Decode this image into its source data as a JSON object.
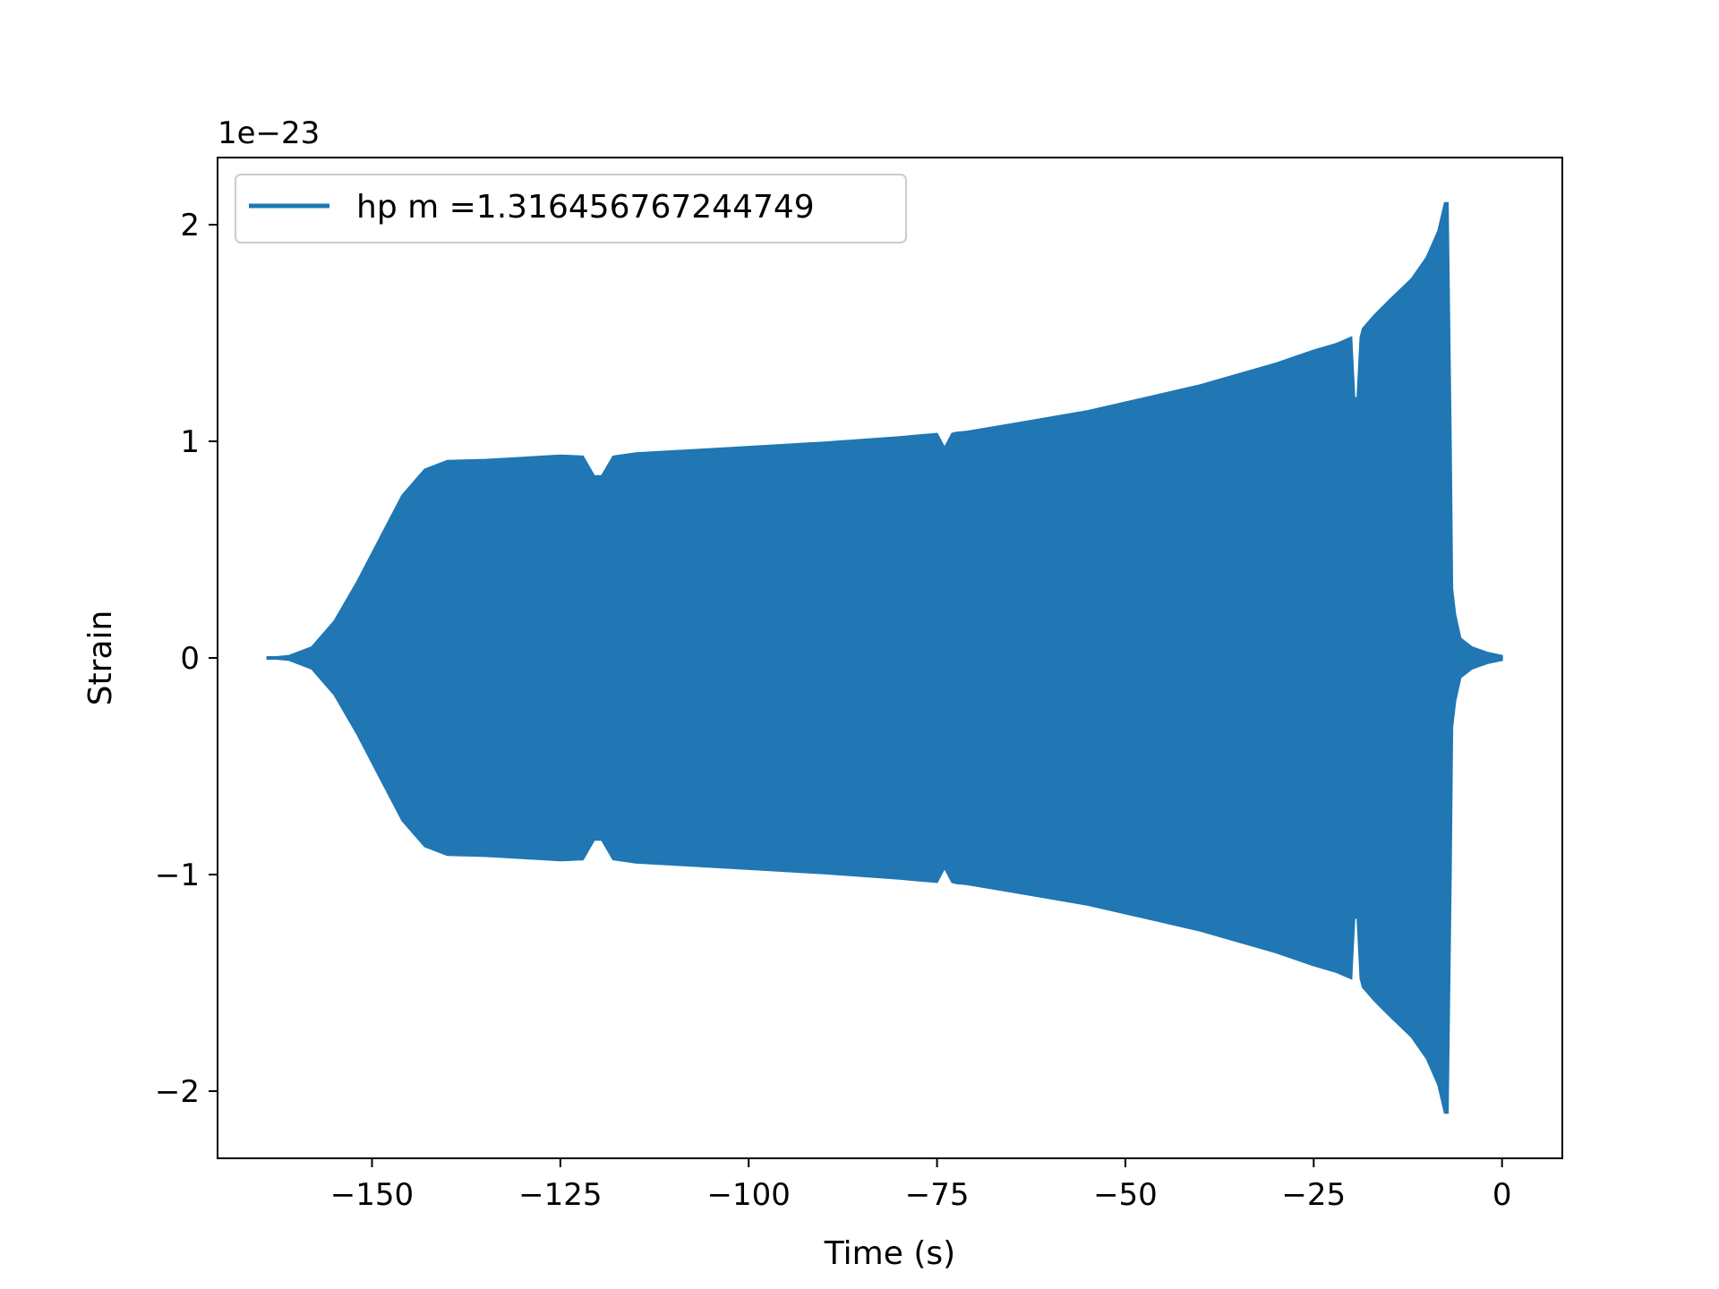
{
  "chart_data": {
    "type": "line",
    "title": "",
    "xlabel": "Time (s)",
    "ylabel": "Strain",
    "y_scale_label": "1e−23",
    "xlim": [
      -170.5,
      8
    ],
    "ylim": [
      -2.31,
      2.31
    ],
    "x_ticks": [
      {
        "value": -150,
        "label": "−150"
      },
      {
        "value": -125,
        "label": "−125"
      },
      {
        "value": -100,
        "label": "−100"
      },
      {
        "value": -75,
        "label": "−75"
      },
      {
        "value": -50,
        "label": "−50"
      },
      {
        "value": -25,
        "label": "−25"
      },
      {
        "value": 0,
        "label": "0"
      }
    ],
    "y_ticks": [
      {
        "value": 2,
        "label": "2"
      },
      {
        "value": 1,
        "label": "1"
      },
      {
        "value": 0,
        "label": "0"
      },
      {
        "value": -1,
        "label": "−1"
      },
      {
        "value": -2,
        "label": "−2"
      }
    ],
    "legend": {
      "placement": "top-left"
    },
    "series": [
      {
        "name": "hp m =1.316456767244749",
        "color": "#1f77b4",
        "envelope": {
          "x": [
            -164,
            -161,
            -158,
            -155,
            -152,
            -149,
            -146,
            -143,
            -140,
            -135,
            -130,
            -125,
            -122,
            -120.5,
            -119.5,
            -118,
            -115,
            -110,
            -100,
            -90,
            -80,
            -75,
            -74,
            -73,
            -72.5,
            -71,
            -65,
            -60,
            -55,
            -50,
            -45,
            -40,
            -35,
            -30,
            -25,
            -22,
            -20,
            -19.6,
            -19.2,
            -18.8,
            -18.5,
            -17,
            -15,
            -12,
            -10,
            -8.5,
            -7.6,
            -7.2,
            -6.8,
            -6.6,
            -6.2,
            -5.5,
            -4,
            -2,
            0
          ],
          "amplitude": [
            0.0,
            0.01,
            0.05,
            0.17,
            0.35,
            0.55,
            0.75,
            0.87,
            0.91,
            0.915,
            0.925,
            0.935,
            0.93,
            0.84,
            0.84,
            0.93,
            0.945,
            0.955,
            0.975,
            0.995,
            1.02,
            1.035,
            0.97,
            1.035,
            1.04,
            1.045,
            1.08,
            1.11,
            1.14,
            1.18,
            1.22,
            1.26,
            1.31,
            1.36,
            1.42,
            1.45,
            1.48,
            1.2,
            1.2,
            1.48,
            1.52,
            1.58,
            1.65,
            1.75,
            1.85,
            1.97,
            2.1,
            2.1,
            1.0,
            0.32,
            0.2,
            0.09,
            0.05,
            0.025,
            0.01
          ]
        }
      }
    ]
  }
}
